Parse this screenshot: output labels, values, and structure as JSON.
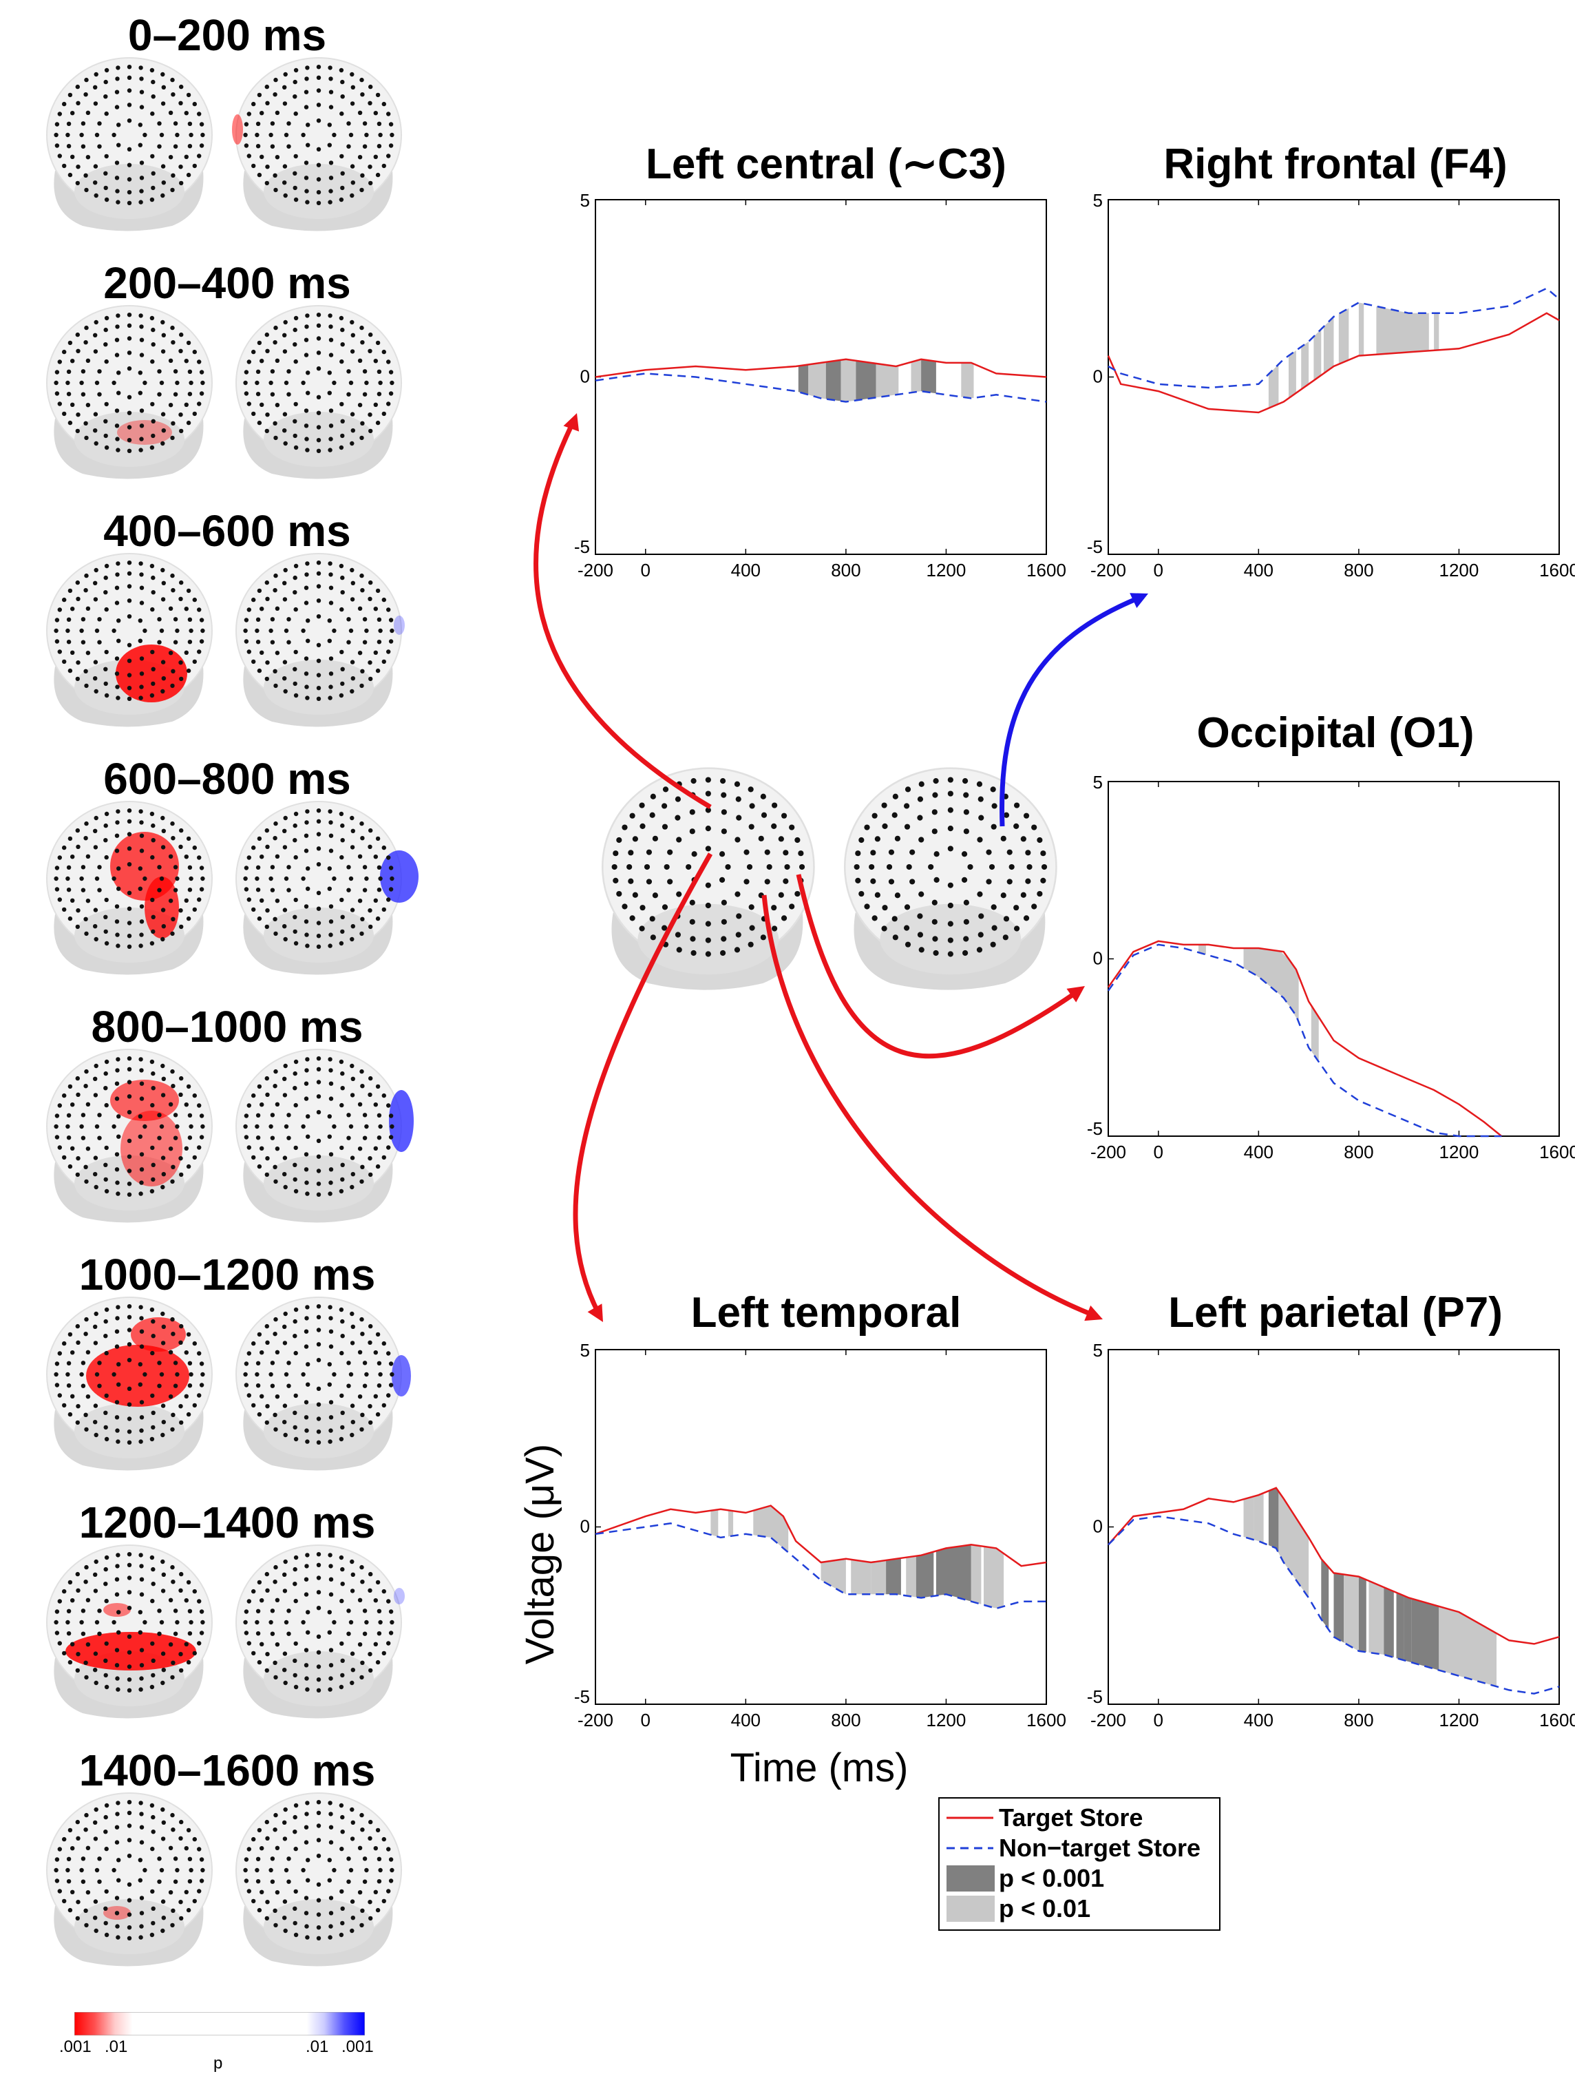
{
  "time_windows": [
    "0–200 ms",
    "200–400 ms",
    "400–600 ms",
    "600–800 ms",
    "800–1000 ms",
    "1000–1200 ms",
    "1200–1400 ms",
    "1400–1600 ms"
  ],
  "colorbar": {
    "labels_left": [
      ".001",
      ".01"
    ],
    "labels_right": [
      ".01",
      ".001"
    ],
    "title": "p"
  },
  "axes": {
    "ylabel": "Voltage (μV)",
    "xlabel": "Time (ms)"
  },
  "legend": {
    "target": "Target Store",
    "nontarget": "Non−target Store",
    "p001": "p < 0.001",
    "p01": "p < 0.01"
  },
  "colors": {
    "target": "#e41a1c",
    "nontarget": "#1f3fd8",
    "p001": "#808080",
    "p01": "#c8c8c8",
    "arrow_red": "#e8131a",
    "arrow_blue": "#1a14e8"
  },
  "chart_data": [
    {
      "type": "line",
      "title": "Left central (∼C3)",
      "xlim": [
        -200,
        1600
      ],
      "ylim": [
        -5,
        5
      ],
      "xticks": [
        "-200",
        "0",
        "400",
        "800",
        "1200",
        "1600"
      ],
      "yticks": [
        "-5",
        "0",
        "5"
      ],
      "series": [
        {
          "name": "Target Store",
          "x": [
            -200,
            0,
            200,
            400,
            600,
            700,
            800,
            900,
            1000,
            1100,
            1200,
            1300,
            1400,
            1600
          ],
          "values": [
            0,
            0.2,
            0.3,
            0.2,
            0.3,
            0.4,
            0.5,
            0.4,
            0.3,
            0.5,
            0.4,
            0.4,
            0.1,
            0
          ]
        },
        {
          "name": "Non−target Store",
          "x": [
            -200,
            0,
            200,
            400,
            600,
            700,
            800,
            900,
            1000,
            1100,
            1200,
            1300,
            1400,
            1600
          ],
          "values": [
            -0.1,
            0.1,
            0,
            -0.2,
            -0.4,
            -0.6,
            -0.7,
            -0.6,
            -0.5,
            -0.4,
            -0.5,
            -0.6,
            -0.5,
            -0.7
          ]
        }
      ],
      "significance": [
        {
          "start": 610,
          "end": 650,
          "level": "p < 0.001"
        },
        {
          "start": 650,
          "end": 720,
          "level": "p < 0.01"
        },
        {
          "start": 720,
          "end": 780,
          "level": "p < 0.001"
        },
        {
          "start": 780,
          "end": 840,
          "level": "p < 0.01"
        },
        {
          "start": 840,
          "end": 920,
          "level": "p < 0.001"
        },
        {
          "start": 920,
          "end": 1010,
          "level": "p < 0.01"
        },
        {
          "start": 1060,
          "end": 1100,
          "level": "p < 0.01"
        },
        {
          "start": 1100,
          "end": 1160,
          "level": "p < 0.001"
        },
        {
          "start": 1260,
          "end": 1310,
          "level": "p < 0.01"
        }
      ]
    },
    {
      "type": "line",
      "title": "Right frontal (F4)",
      "xlim": [
        -200,
        1600
      ],
      "ylim": [
        -5,
        5
      ],
      "xticks": [
        "-200",
        "0",
        "400",
        "800",
        "1200",
        "1600"
      ],
      "yticks": [
        "-5",
        "0",
        "5"
      ],
      "series": [
        {
          "name": "Target Store",
          "x": [
            -200,
            -150,
            0,
            200,
            400,
            500,
            600,
            700,
            800,
            1000,
            1200,
            1400,
            1550,
            1600
          ],
          "values": [
            0.6,
            -0.2,
            -0.4,
            -0.9,
            -1.0,
            -0.7,
            -0.2,
            0.3,
            0.6,
            0.7,
            0.8,
            1.2,
            1.8,
            1.6
          ]
        },
        {
          "name": "Non−target Store",
          "x": [
            -200,
            -150,
            0,
            200,
            400,
            500,
            600,
            700,
            800,
            1000,
            1200,
            1400,
            1550,
            1600
          ],
          "values": [
            0.3,
            0.1,
            -0.2,
            -0.3,
            -0.2,
            0.5,
            1.0,
            1.7,
            2.1,
            1.8,
            1.8,
            2.0,
            2.5,
            2.2
          ]
        }
      ],
      "significance": [
        {
          "start": 440,
          "end": 480,
          "level": "p < 0.01"
        },
        {
          "start": 520,
          "end": 550,
          "level": "p < 0.01"
        },
        {
          "start": 570,
          "end": 600,
          "level": "p < 0.01"
        },
        {
          "start": 620,
          "end": 650,
          "level": "p < 0.01"
        },
        {
          "start": 660,
          "end": 700,
          "level": "p < 0.01"
        },
        {
          "start": 720,
          "end": 760,
          "level": "p < 0.01"
        },
        {
          "start": 800,
          "end": 820,
          "level": "p < 0.01"
        },
        {
          "start": 870,
          "end": 1080,
          "level": "p < 0.01"
        },
        {
          "start": 1100,
          "end": 1120,
          "level": "p < 0.01"
        }
      ]
    },
    {
      "type": "line",
      "title": "Occipital (O1)",
      "xlim": [
        -200,
        1600
      ],
      "ylim": [
        -5,
        5
      ],
      "xticks": [
        "-200",
        "0",
        "400",
        "800",
        "1200",
        "1600"
      ],
      "yticks": [
        "-5",
        "0",
        "5"
      ],
      "series": [
        {
          "name": "Target Store",
          "x": [
            -200,
            -100,
            0,
            100,
            200,
            300,
            400,
            500,
            550,
            600,
            700,
            800,
            900,
            1000,
            1100,
            1200,
            1300,
            1370
          ],
          "values": [
            -0.8,
            0.2,
            0.5,
            0.4,
            0.4,
            0.3,
            0.3,
            0.2,
            -0.3,
            -1.2,
            -2.3,
            -2.8,
            -3.1,
            -3.4,
            -3.7,
            -4.1,
            -4.6,
            -5.0
          ]
        },
        {
          "name": "Non−target Store",
          "x": [
            -200,
            -100,
            0,
            100,
            200,
            300,
            400,
            500,
            550,
            600,
            700,
            800,
            900,
            1000,
            1100,
            1200,
            1300,
            1370
          ],
          "values": [
            -0.9,
            0.1,
            0.4,
            0.3,
            0.1,
            -0.1,
            -0.5,
            -1.1,
            -1.6,
            -2.5,
            -3.5,
            -4.0,
            -4.3,
            -4.6,
            -4.9,
            -5.0,
            -5.0,
            -5.0
          ]
        }
      ],
      "significance": [
        {
          "start": 160,
          "end": 190,
          "level": "p < 0.01"
        },
        {
          "start": 340,
          "end": 560,
          "level": "p < 0.01"
        },
        {
          "start": 610,
          "end": 640,
          "level": "p < 0.01"
        }
      ]
    },
    {
      "type": "line",
      "title": "Left temporal",
      "xlim": [
        -200,
        1600
      ],
      "ylim": [
        -5,
        5
      ],
      "xticks": [
        "-200",
        "0",
        "400",
        "800",
        "1200",
        "1600"
      ],
      "yticks": [
        "-5",
        "0",
        "5"
      ],
      "series": [
        {
          "name": "Target Store",
          "x": [
            -200,
            0,
            100,
            200,
            300,
            400,
            500,
            550,
            600,
            700,
            800,
            900,
            1000,
            1100,
            1200,
            1300,
            1400,
            1500,
            1600
          ],
          "values": [
            -0.2,
            0.3,
            0.5,
            0.4,
            0.5,
            0.4,
            0.6,
            0.3,
            -0.4,
            -1.0,
            -0.9,
            -1.0,
            -0.9,
            -0.8,
            -0.6,
            -0.5,
            -0.6,
            -1.1,
            -1.0
          ]
        },
        {
          "name": "Non−target Store",
          "x": [
            -200,
            0,
            100,
            200,
            300,
            400,
            500,
            550,
            600,
            700,
            800,
            900,
            1000,
            1100,
            1200,
            1300,
            1400,
            1500,
            1600
          ],
          "values": [
            -0.2,
            0.0,
            0.1,
            -0.1,
            -0.3,
            -0.2,
            -0.3,
            -0.6,
            -0.9,
            -1.5,
            -1.9,
            -1.9,
            -1.9,
            -2.0,
            -1.9,
            -2.1,
            -2.3,
            -2.1,
            -2.1
          ]
        }
      ],
      "significance": [
        {
          "start": 260,
          "end": 290,
          "level": "p < 0.01"
        },
        {
          "start": 330,
          "end": 350,
          "level": "p < 0.01"
        },
        {
          "start": 430,
          "end": 570,
          "level": "p < 0.01"
        },
        {
          "start": 700,
          "end": 800,
          "level": "p < 0.01"
        },
        {
          "start": 820,
          "end": 900,
          "level": "p < 0.01"
        },
        {
          "start": 900,
          "end": 960,
          "level": "p < 0.01"
        },
        {
          "start": 960,
          "end": 1020,
          "level": "p < 0.001"
        },
        {
          "start": 1040,
          "end": 1080,
          "level": "p < 0.01"
        },
        {
          "start": 1080,
          "end": 1150,
          "level": "p < 0.001"
        },
        {
          "start": 1160,
          "end": 1300,
          "level": "p < 0.001"
        },
        {
          "start": 1300,
          "end": 1340,
          "level": "p < 0.01"
        },
        {
          "start": 1350,
          "end": 1430,
          "level": "p < 0.01"
        }
      ]
    },
    {
      "type": "line",
      "title": "Left parietal (P7)",
      "xlim": [
        -200,
        1600
      ],
      "ylim": [
        -5,
        5
      ],
      "xticks": [
        "-200",
        "0",
        "400",
        "800",
        "1200",
        "1600"
      ],
      "yticks": [
        "-5",
        "0",
        "5"
      ],
      "series": [
        {
          "name": "Target Store",
          "x": [
            -200,
            -100,
            0,
            100,
            200,
            300,
            400,
            470,
            500,
            600,
            650,
            700,
            800,
            900,
            1000,
            1100,
            1200,
            1300,
            1400,
            1500,
            1600
          ],
          "values": [
            -0.5,
            0.3,
            0.4,
            0.5,
            0.8,
            0.7,
            0.9,
            1.1,
            0.8,
            -0.3,
            -0.9,
            -1.3,
            -1.4,
            -1.7,
            -2.0,
            -2.2,
            -2.4,
            -2.8,
            -3.2,
            -3.3,
            -3.1
          ]
        },
        {
          "name": "Non−target Store",
          "x": [
            -200,
            -100,
            0,
            100,
            200,
            300,
            400,
            470,
            500,
            600,
            650,
            700,
            800,
            900,
            1000,
            1100,
            1200,
            1300,
            1400,
            1500,
            1600
          ],
          "values": [
            -0.5,
            0.2,
            0.3,
            0.2,
            0.1,
            -0.2,
            -0.4,
            -0.6,
            -1.0,
            -2.0,
            -2.6,
            -3.1,
            -3.5,
            -3.6,
            -3.8,
            -4.0,
            -4.2,
            -4.4,
            -4.6,
            -4.7,
            -4.5
          ]
        }
      ],
      "significance": [
        {
          "start": 340,
          "end": 380,
          "level": "p < 0.01"
        },
        {
          "start": 380,
          "end": 420,
          "level": "p < 0.01"
        },
        {
          "start": 440,
          "end": 480,
          "level": "p < 0.001"
        },
        {
          "start": 480,
          "end": 600,
          "level": "p < 0.01"
        },
        {
          "start": 650,
          "end": 680,
          "level": "p < 0.001"
        },
        {
          "start": 700,
          "end": 740,
          "level": "p < 0.001"
        },
        {
          "start": 740,
          "end": 800,
          "level": "p < 0.01"
        },
        {
          "start": 800,
          "end": 830,
          "level": "p < 0.001"
        },
        {
          "start": 840,
          "end": 900,
          "level": "p < 0.01"
        },
        {
          "start": 900,
          "end": 940,
          "level": "p < 0.001"
        },
        {
          "start": 950,
          "end": 980,
          "level": "p < 0.001"
        },
        {
          "start": 980,
          "end": 1010,
          "level": "p < 0.001"
        },
        {
          "start": 1010,
          "end": 1120,
          "level": "p < 0.001"
        },
        {
          "start": 1120,
          "end": 1350,
          "level": "p < 0.01"
        }
      ]
    }
  ]
}
